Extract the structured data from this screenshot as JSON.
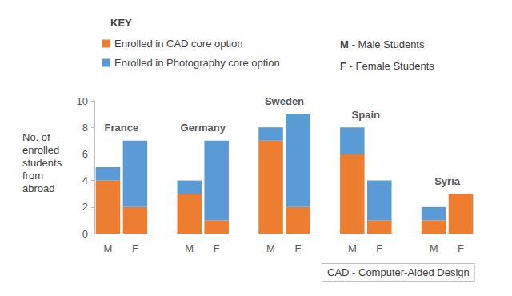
{
  "chart_data": {
    "type": "bar",
    "stacked": true,
    "categories": [
      "M",
      "F",
      null,
      "M",
      "F",
      null,
      "M",
      "F",
      null,
      "M",
      "F",
      null,
      "M",
      "F"
    ],
    "series": [
      {
        "name": "Enrolled in CAD core option",
        "color": "#ed7d31",
        "values": [
          4,
          2,
          null,
          3,
          1,
          null,
          7,
          2,
          null,
          6,
          1,
          null,
          1,
          3
        ]
      },
      {
        "name": "Enrolled in Photography core option",
        "color": "#5b9bd5",
        "values": [
          1,
          5,
          null,
          1,
          6,
          null,
          1,
          7,
          null,
          2,
          3,
          null,
          1,
          0
        ]
      }
    ],
    "y_label": "No. of enrolled students from abroad",
    "ylim": [
      0,
      10
    ],
    "yticks": [
      0,
      2,
      4,
      6,
      8,
      10
    ],
    "grid": false,
    "legend": "top-left",
    "legend_title": "KEY",
    "notes": [
      "M - Male Students",
      "F - Female Students"
    ],
    "footnote": "CAD - Computer-Aided Design",
    "annotations": [
      {
        "text": "France",
        "categories": [
          0,
          1
        ]
      },
      {
        "text": "Germany",
        "categories": [
          3,
          4
        ]
      },
      {
        "text": "Sweden",
        "categories": [
          6,
          7
        ]
      },
      {
        "text": "Spain",
        "categories": [
          9,
          10
        ]
      },
      {
        "text": "Syria",
        "categories": [
          12,
          13
        ]
      }
    ]
  }
}
